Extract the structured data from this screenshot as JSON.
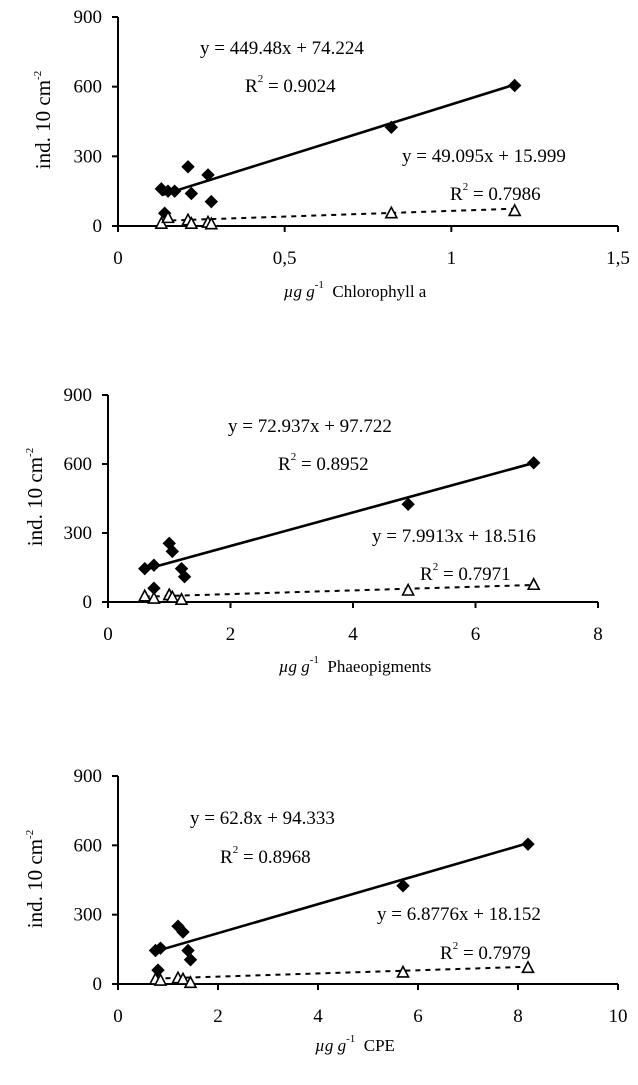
{
  "chart_data": [
    {
      "type": "scatter",
      "xlabel": {
        "unit": "µg g",
        "exp": "-1",
        "name": "Chlorophyll a"
      },
      "ylabel": {
        "base": "ind. 10 cm",
        "exp": "-2"
      },
      "xlim": [
        0,
        1.5
      ],
      "ylim": [
        0,
        900
      ],
      "x_ticks": [
        "0",
        "0,5",
        "1",
        "1,5"
      ],
      "x_tick_values": [
        0,
        0.5,
        1,
        1.5
      ],
      "y_ticks": [
        "0",
        "300",
        "600",
        "900"
      ],
      "y_tick_values": [
        0,
        300,
        600,
        900
      ],
      "series": [
        {
          "marker": "filled-diamond",
          "x": [
            0.13,
            0.14,
            0.15,
            0.17,
            0.21,
            0.22,
            0.27,
            0.28,
            0.82,
            1.19
          ],
          "y": [
            160,
            55,
            150,
            150,
            255,
            140,
            220,
            105,
            425,
            605
          ],
          "fit": {
            "equation": "y = 449.48x + 74.224",
            "r2": "R",
            "r2_exp": "2",
            "r2_value": " = 0.9024",
            "line": "solid",
            "x_range": [
              0.13,
              1.19
            ]
          }
        },
        {
          "marker": "open-triangle",
          "x": [
            0.13,
            0.15,
            0.21,
            0.22,
            0.27,
            0.28,
            0.82,
            1.19
          ],
          "y": [
            10,
            35,
            25,
            10,
            15,
            8,
            55,
            65
          ],
          "fit": {
            "equation": "y = 49.095x + 15.999",
            "r2": "R",
            "r2_exp": "2",
            "r2_value": " = 0.7986",
            "line": "dashed",
            "x_range": [
              0.13,
              1.19
            ]
          }
        }
      ]
    },
    {
      "type": "scatter",
      "xlabel": {
        "unit": "µg g",
        "exp": "-1",
        "name": "Phaeopigments"
      },
      "ylabel": {
        "base": "ind. 10 cm",
        "exp": "-2"
      },
      "xlim": [
        0,
        8
      ],
      "ylim": [
        0,
        900
      ],
      "x_ticks": [
        "0",
        "2",
        "4",
        "6",
        "8"
      ],
      "x_tick_values": [
        0,
        2,
        4,
        6,
        8
      ],
      "y_ticks": [
        "0",
        "300",
        "600",
        "900"
      ],
      "y_tick_values": [
        0,
        300,
        600,
        900
      ],
      "series": [
        {
          "marker": "filled-diamond",
          "x": [
            0.6,
            0.75,
            0.75,
            1.0,
            1.05,
            1.2,
            1.25,
            4.9,
            6.95
          ],
          "y": [
            145,
            160,
            60,
            255,
            220,
            145,
            110,
            425,
            605
          ],
          "fit": {
            "equation": "y = 72.937x + 97.722",
            "r2": "R",
            "r2_exp": "2",
            "r2_value": " = 0.8952",
            "line": "solid",
            "x_range": [
              0.6,
              6.95
            ]
          }
        },
        {
          "marker": "open-triangle",
          "x": [
            0.6,
            0.75,
            1.0,
            1.05,
            1.2,
            4.9,
            6.95
          ],
          "y": [
            25,
            15,
            30,
            20,
            10,
            50,
            75
          ],
          "fit": {
            "equation": "y = 7.9913x + 18.516",
            "r2": "R",
            "r2_exp": "2",
            "r2_value": " = 0.7971",
            "line": "dashed",
            "x_range": [
              0.6,
              6.95
            ]
          }
        }
      ]
    },
    {
      "type": "scatter",
      "xlabel": {
        "unit": "µg g",
        "exp": "-1",
        "name": "CPE"
      },
      "ylabel": {
        "base": "ind. 10 cm",
        "exp": "-2"
      },
      "xlim": [
        0,
        10
      ],
      "ylim": [
        0,
        900
      ],
      "x_ticks": [
        "0",
        "2",
        "4",
        "6",
        "8",
        "10"
      ],
      "x_tick_values": [
        0,
        2,
        4,
        6,
        8,
        10
      ],
      "y_ticks": [
        "0",
        "300",
        "600",
        "900"
      ],
      "y_tick_values": [
        0,
        300,
        600,
        900
      ],
      "series": [
        {
          "marker": "filled-diamond",
          "x": [
            0.75,
            0.8,
            0.85,
            1.2,
            1.3,
            1.4,
            1.45,
            5.7,
            8.2
          ],
          "y": [
            145,
            60,
            155,
            250,
            225,
            145,
            105,
            425,
            605
          ],
          "fit": {
            "equation": "y = 62.8x + 94.333",
            "r2": "R",
            "r2_exp": "2",
            "r2_value": " = 0.8968",
            "line": "solid",
            "x_range": [
              0.75,
              8.2
            ]
          }
        },
        {
          "marker": "open-triangle",
          "x": [
            0.75,
            0.85,
            1.2,
            1.3,
            1.45,
            5.7,
            8.2
          ],
          "y": [
            20,
            15,
            25,
            20,
            5,
            50,
            70
          ],
          "fit": {
            "equation": "y = 6.8776x + 18.152",
            "r2": "R",
            "r2_exp": "2",
            "r2_value": " = 0.7979",
            "line": "dashed",
            "x_range": [
              0.75,
              8.2
            ]
          }
        }
      ]
    }
  ]
}
